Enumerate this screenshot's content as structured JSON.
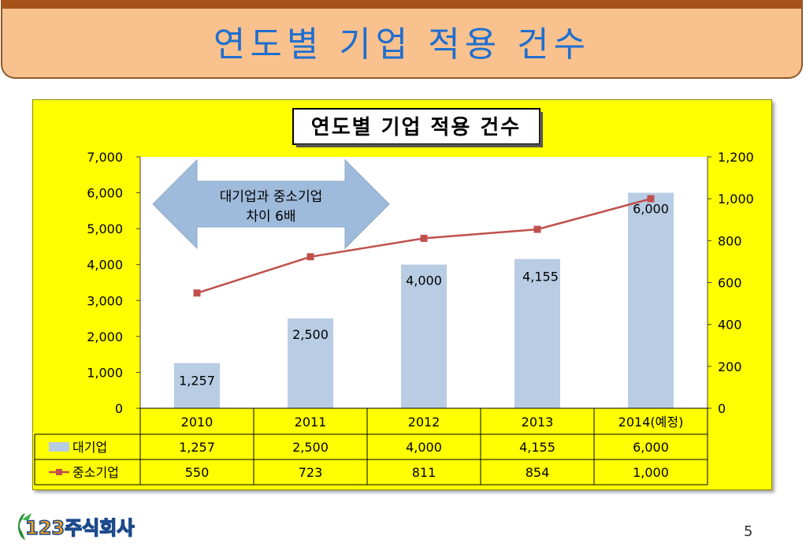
{
  "slide": {
    "title": "연도별 기업 적용 건수",
    "page_number": "5",
    "logo_text": "123주식회사"
  },
  "colors": {
    "bar": "#b8cce4",
    "line": "#c0504d",
    "frame": "#ffff00",
    "title_bar": "#f9c18e",
    "title_text": "#1f6fcf"
  },
  "chart_data": {
    "type": "bar",
    "title": "연도별 기업 적용 건수",
    "categories": [
      "2010",
      "2011",
      "2012",
      "2013",
      "2014(예정)"
    ],
    "series": [
      {
        "name": "대기업",
        "type": "bar",
        "axis": "left",
        "values": [
          1257,
          2500,
          4000,
          4155,
          6000
        ],
        "value_labels": [
          "1,257",
          "2,500",
          "4,000",
          "4,155",
          "6,000"
        ]
      },
      {
        "name": "중소기업",
        "type": "line",
        "axis": "right",
        "values": [
          550,
          723,
          811,
          854,
          1000
        ],
        "value_labels": [
          "550",
          "723",
          "811",
          "854",
          "1,000"
        ]
      }
    ],
    "ylim_left": [
      0,
      7000
    ],
    "ylim_right": [
      0,
      1200
    ],
    "left_ticks": [
      "0",
      "1,000",
      "2,000",
      "3,000",
      "4,000",
      "5,000",
      "6,000",
      "7,000"
    ],
    "right_ticks": [
      "0",
      "200",
      "400",
      "600",
      "800",
      "1,000",
      "1,200"
    ],
    "annotation": {
      "line1": "대기업과  중소기업",
      "line2": "차이 6배"
    },
    "data_table": true,
    "grid": false
  }
}
